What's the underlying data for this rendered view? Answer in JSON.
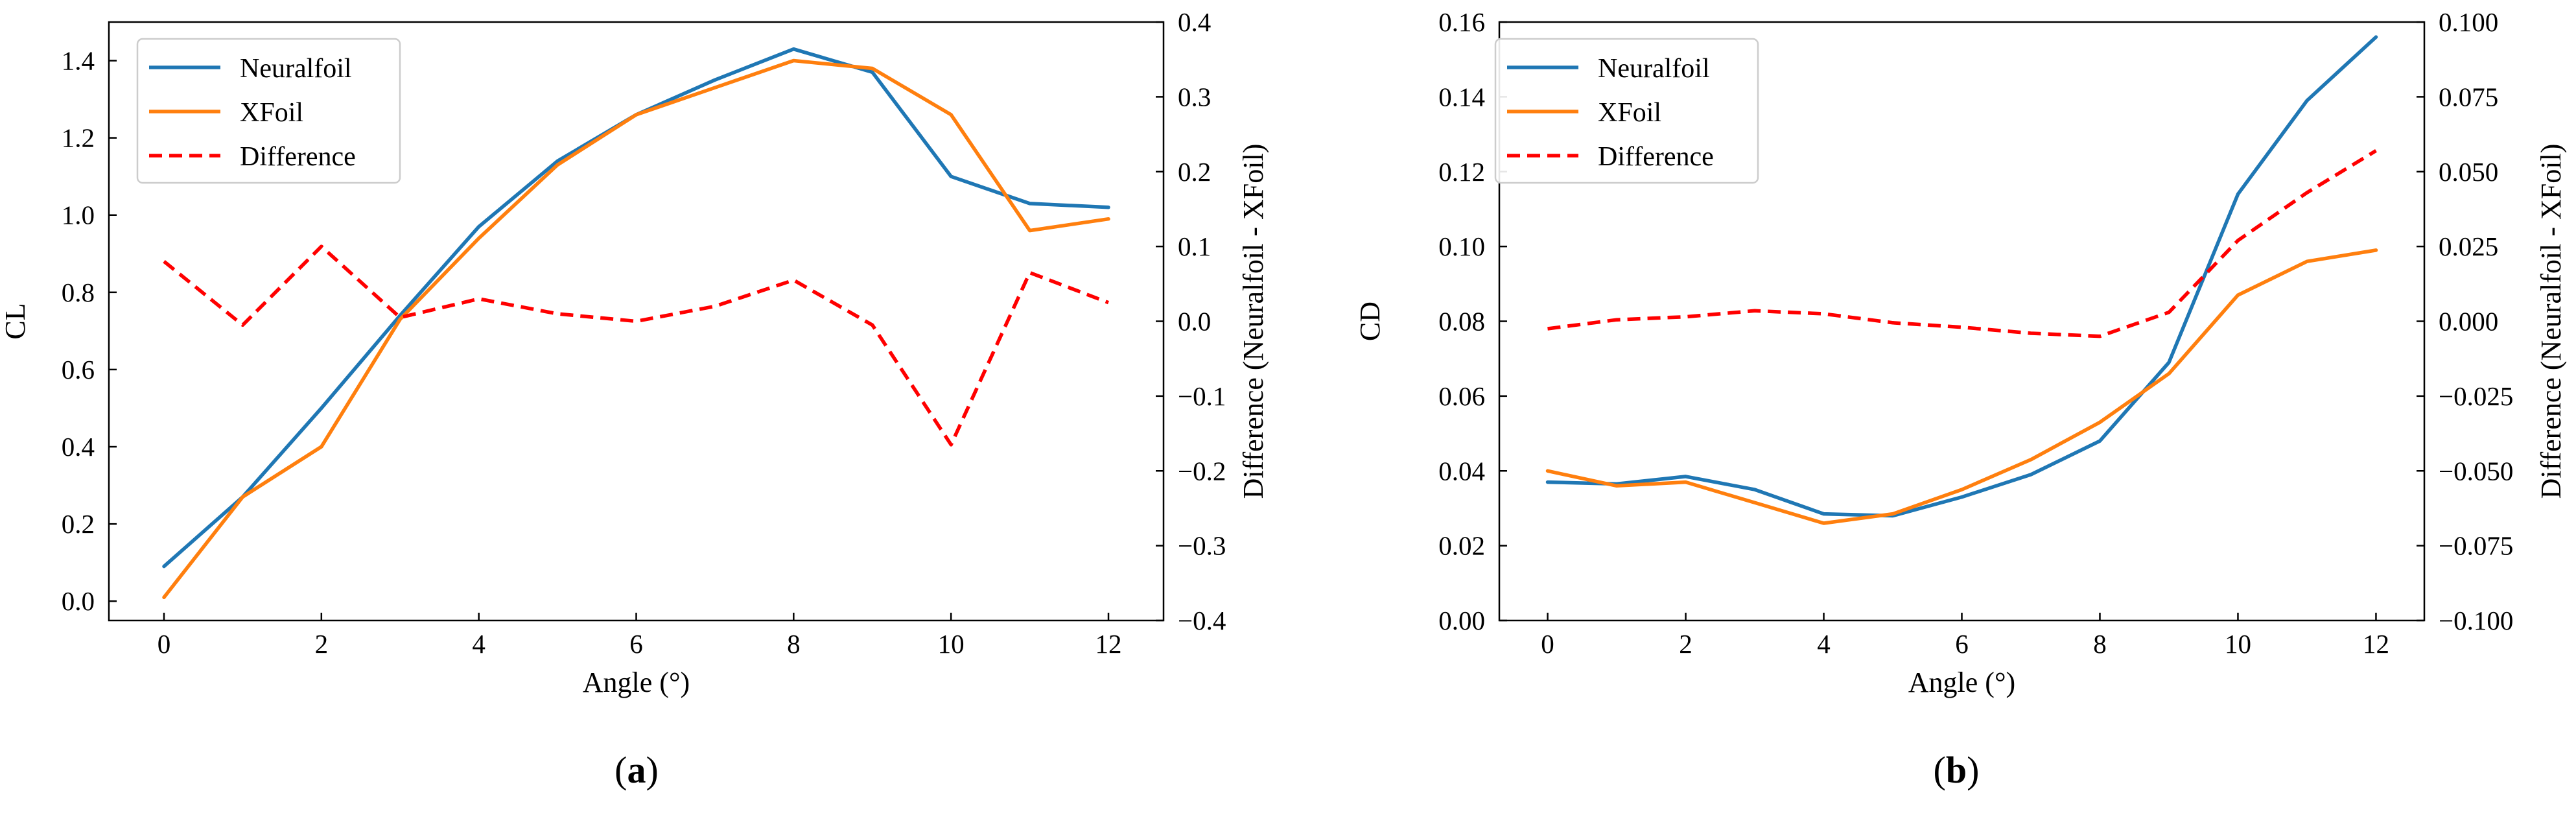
{
  "colors": {
    "neuralfoil": "#1f77b4",
    "xfoil": "#ff7f0e",
    "difference": "#ff0000"
  },
  "chart_data": [
    {
      "id": "a",
      "type": "line",
      "caption": {
        "letter": "a",
        "open": "(",
        "close": ")"
      },
      "xlabel": "Angle (°)",
      "ylabel": "CL",
      "y2label": "Difference (Neuralfoil - XFoil)",
      "xlim": [
        -0.7,
        12.7
      ],
      "ylim": [
        -0.05,
        1.5
      ],
      "y2lim": [
        -0.4,
        0.4
      ],
      "xticks": [
        "0",
        "2",
        "4",
        "6",
        "8",
        "10",
        "12"
      ],
      "xtick_values": [
        0,
        2,
        4,
        6,
        8,
        10,
        12
      ],
      "yticks": [
        "0.0",
        "0.2",
        "0.4",
        "0.6",
        "0.8",
        "1.0",
        "1.2",
        "1.4"
      ],
      "ytick_values": [
        0,
        0.2,
        0.4,
        0.6,
        0.8,
        1.0,
        1.2,
        1.4
      ],
      "y2ticks": [
        "−0.4",
        "−0.3",
        "−0.2",
        "−0.1",
        "0.0",
        "0.1",
        "0.2",
        "0.3",
        "0.4"
      ],
      "y2tick_values": [
        -0.4,
        -0.3,
        -0.2,
        -0.1,
        0,
        0.1,
        0.2,
        0.3,
        0.4
      ],
      "legend_position": "top-left",
      "x": [
        0,
        1,
        2,
        3,
        4,
        5,
        6,
        7,
        8,
        9,
        10,
        11,
        12
      ],
      "series": [
        {
          "name": "Neuralfoil",
          "axis": "left",
          "style": "solid",
          "values": [
            0.09,
            0.27,
            0.5,
            0.74,
            0.97,
            1.14,
            1.26,
            1.35,
            1.43,
            1.37,
            1.1,
            1.03,
            1.02
          ]
        },
        {
          "name": "XFoil",
          "axis": "left",
          "style": "solid",
          "values": [
            0.01,
            0.27,
            0.4,
            0.73,
            0.94,
            1.13,
            1.26,
            1.33,
            1.4,
            1.38,
            1.26,
            0.96,
            0.99
          ]
        },
        {
          "name": "Difference",
          "axis": "right",
          "style": "dashed",
          "values": [
            0.08,
            -0.005,
            0.1,
            0.005,
            0.03,
            0.01,
            0.0,
            0.02,
            0.055,
            -0.005,
            -0.165,
            0.065,
            0.025
          ]
        }
      ]
    },
    {
      "id": "b",
      "type": "line",
      "caption": {
        "letter": "b",
        "open": "(",
        "close": ")"
      },
      "xlabel": "Angle (°)",
      "ylabel": "CD",
      "y2label": "Difference (Neuralfoil - XFoil)",
      "xlim": [
        -0.7,
        12.7
      ],
      "ylim": [
        0,
        0.16
      ],
      "y2lim": [
        -0.1,
        0.1
      ],
      "xticks": [
        "0",
        "2",
        "4",
        "6",
        "8",
        "10",
        "12"
      ],
      "xtick_values": [
        0,
        2,
        4,
        6,
        8,
        10,
        12
      ],
      "yticks": [
        "0.00",
        "0.02",
        "0.04",
        "0.06",
        "0.08",
        "0.10",
        "0.12",
        "0.14",
        "0.16"
      ],
      "ytick_values": [
        0,
        0.02,
        0.04,
        0.06,
        0.08,
        0.1,
        0.12,
        0.14,
        0.16
      ],
      "y2ticks": [
        "−0.100",
        "−0.075",
        "−0.050",
        "−0.025",
        "0.000",
        "0.025",
        "0.050",
        "0.075",
        "0.100"
      ],
      "y2tick_values": [
        -0.1,
        -0.075,
        -0.05,
        -0.025,
        0,
        0.025,
        0.05,
        0.075,
        0.1
      ],
      "legend_position": "top-left",
      "x": [
        0,
        1,
        2,
        3,
        4,
        5,
        6,
        7,
        8,
        9,
        10,
        11,
        12
      ],
      "series": [
        {
          "name": "Neuralfoil",
          "axis": "left",
          "style": "solid",
          "values": [
            0.037,
            0.0365,
            0.0385,
            0.035,
            0.0285,
            0.028,
            0.033,
            0.039,
            0.048,
            0.069,
            0.114,
            0.139,
            0.156
          ]
        },
        {
          "name": "XFoil",
          "axis": "left",
          "style": "solid",
          "values": [
            0.04,
            0.036,
            0.037,
            0.0315,
            0.026,
            0.0285,
            0.035,
            0.043,
            0.053,
            0.066,
            0.087,
            0.096,
            0.099
          ]
        },
        {
          "name": "Difference",
          "axis": "right",
          "style": "dashed",
          "values": [
            -0.0025,
            0.0005,
            0.0015,
            0.0035,
            0.0025,
            -0.0005,
            -0.002,
            -0.004,
            -0.005,
            0.003,
            0.027,
            0.043,
            0.057
          ]
        }
      ]
    }
  ]
}
